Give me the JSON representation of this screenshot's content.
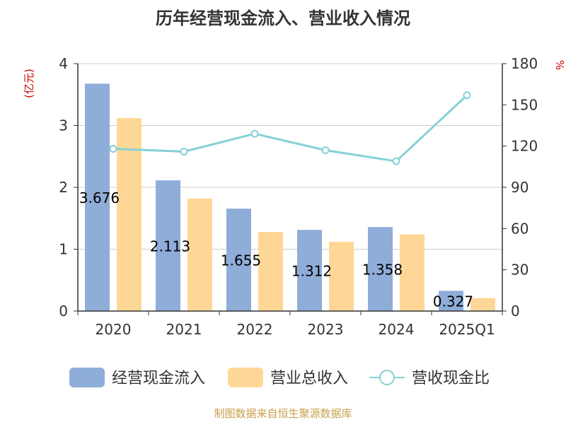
{
  "chart_data": {
    "type": "bar",
    "title": "历年经营现金流入、营业收入情况",
    "categories": [
      "2020",
      "2021",
      "2022",
      "2023",
      "2024",
      "2025Q1"
    ],
    "ylabel": "(亿元)",
    "y2label": "%",
    "ylim": [
      0,
      4
    ],
    "y2lim": [
      0,
      180
    ],
    "yticks": [
      "0",
      "1",
      "2",
      "3",
      "4"
    ],
    "y2ticks": [
      "0",
      "30",
      "60",
      "90",
      "120",
      "150",
      "180"
    ],
    "grid": true,
    "legend_position": "bottom",
    "series": [
      {
        "name": "经营现金流入",
        "type": "bar",
        "axis": "left",
        "color": "#8fadd9",
        "values": [
          3.676,
          2.113,
          1.655,
          1.312,
          1.358,
          0.327
        ],
        "labels": [
          "3.676",
          "2.113",
          "1.655",
          "1.312",
          "1.358",
          "0.327"
        ]
      },
      {
        "name": "营业总收入",
        "type": "bar",
        "axis": "left",
        "color": "#fed797",
        "values": [
          3.12,
          1.82,
          1.28,
          1.12,
          1.24,
          0.21
        ]
      },
      {
        "name": "营收现金比",
        "type": "line",
        "axis": "right",
        "color": "#85d1d6",
        "values": [
          118,
          116,
          129,
          117,
          109,
          157
        ]
      }
    ]
  },
  "footer": {
    "source": "制图数据来自恒生聚源数据库"
  },
  "colors": {
    "title": "#333333",
    "axis_unit": "#cc0000",
    "footer": "#c8a04a",
    "axis": "#333333",
    "grid": "#cccccc"
  }
}
